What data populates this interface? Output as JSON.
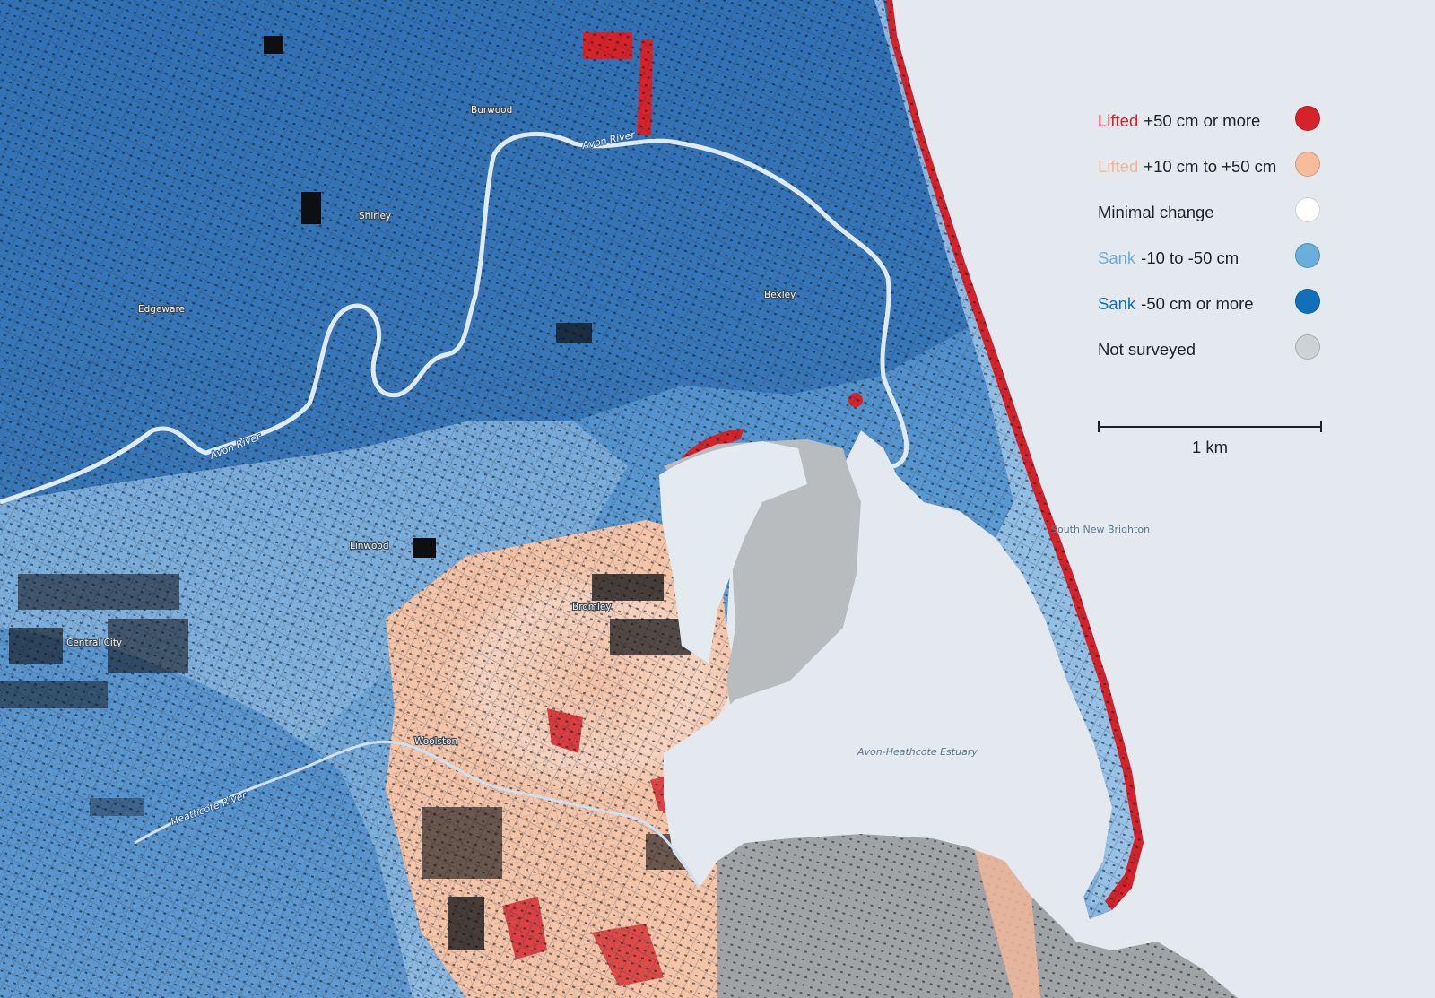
{
  "legend": {
    "items": [
      {
        "keyword": "Lifted",
        "rest": "+50 cm or more",
        "keyword_color": "#d6232a",
        "swatch": "#d6232a"
      },
      {
        "keyword": "Lifted",
        "rest": "+10 cm to +50 cm",
        "keyword_color": "#f4b594",
        "swatch": "#f7bc9c"
      },
      {
        "keyword": "",
        "rest": "Minimal change",
        "keyword_color": "#1c2229",
        "swatch": "#ffffff"
      },
      {
        "keyword": "Sank",
        "rest": "-10 to -50 cm",
        "keyword_color": "#6aaedb",
        "swatch": "#6aaedb"
      },
      {
        "keyword": "Sank",
        "rest": "-50 cm or more",
        "keyword_color": "#0f6fb8",
        "swatch": "#1170b9"
      },
      {
        "keyword": "",
        "rest": "Not surveyed",
        "keyword_color": "#1c2229",
        "swatch": "#cfd2d5"
      }
    ]
  },
  "scale": {
    "label": "1 km"
  },
  "places": {
    "burwood": "Burwood",
    "shirley": "Shirley",
    "edgeware": "Edgeware",
    "bexley": "Bexley",
    "linwood": "Linwood",
    "bromley": "Bromley",
    "central_city": "Central City",
    "woolston": "Woolston"
  },
  "water": {
    "avon_river": "Avon River",
    "heathcote_river": "Heathcote River",
    "estuary": "Avon-Heathcote Estuary",
    "south_new_brighton": "South New Brighton"
  },
  "colors": {
    "background": "#e3e9ee",
    "deep_blue": "#2f6fb3",
    "mid_blue": "#5d9bd3",
    "light_blue": "#a9cbe8",
    "peach": "#f3c6ad",
    "red": "#d6232a",
    "gray": "#b5b8bb"
  }
}
